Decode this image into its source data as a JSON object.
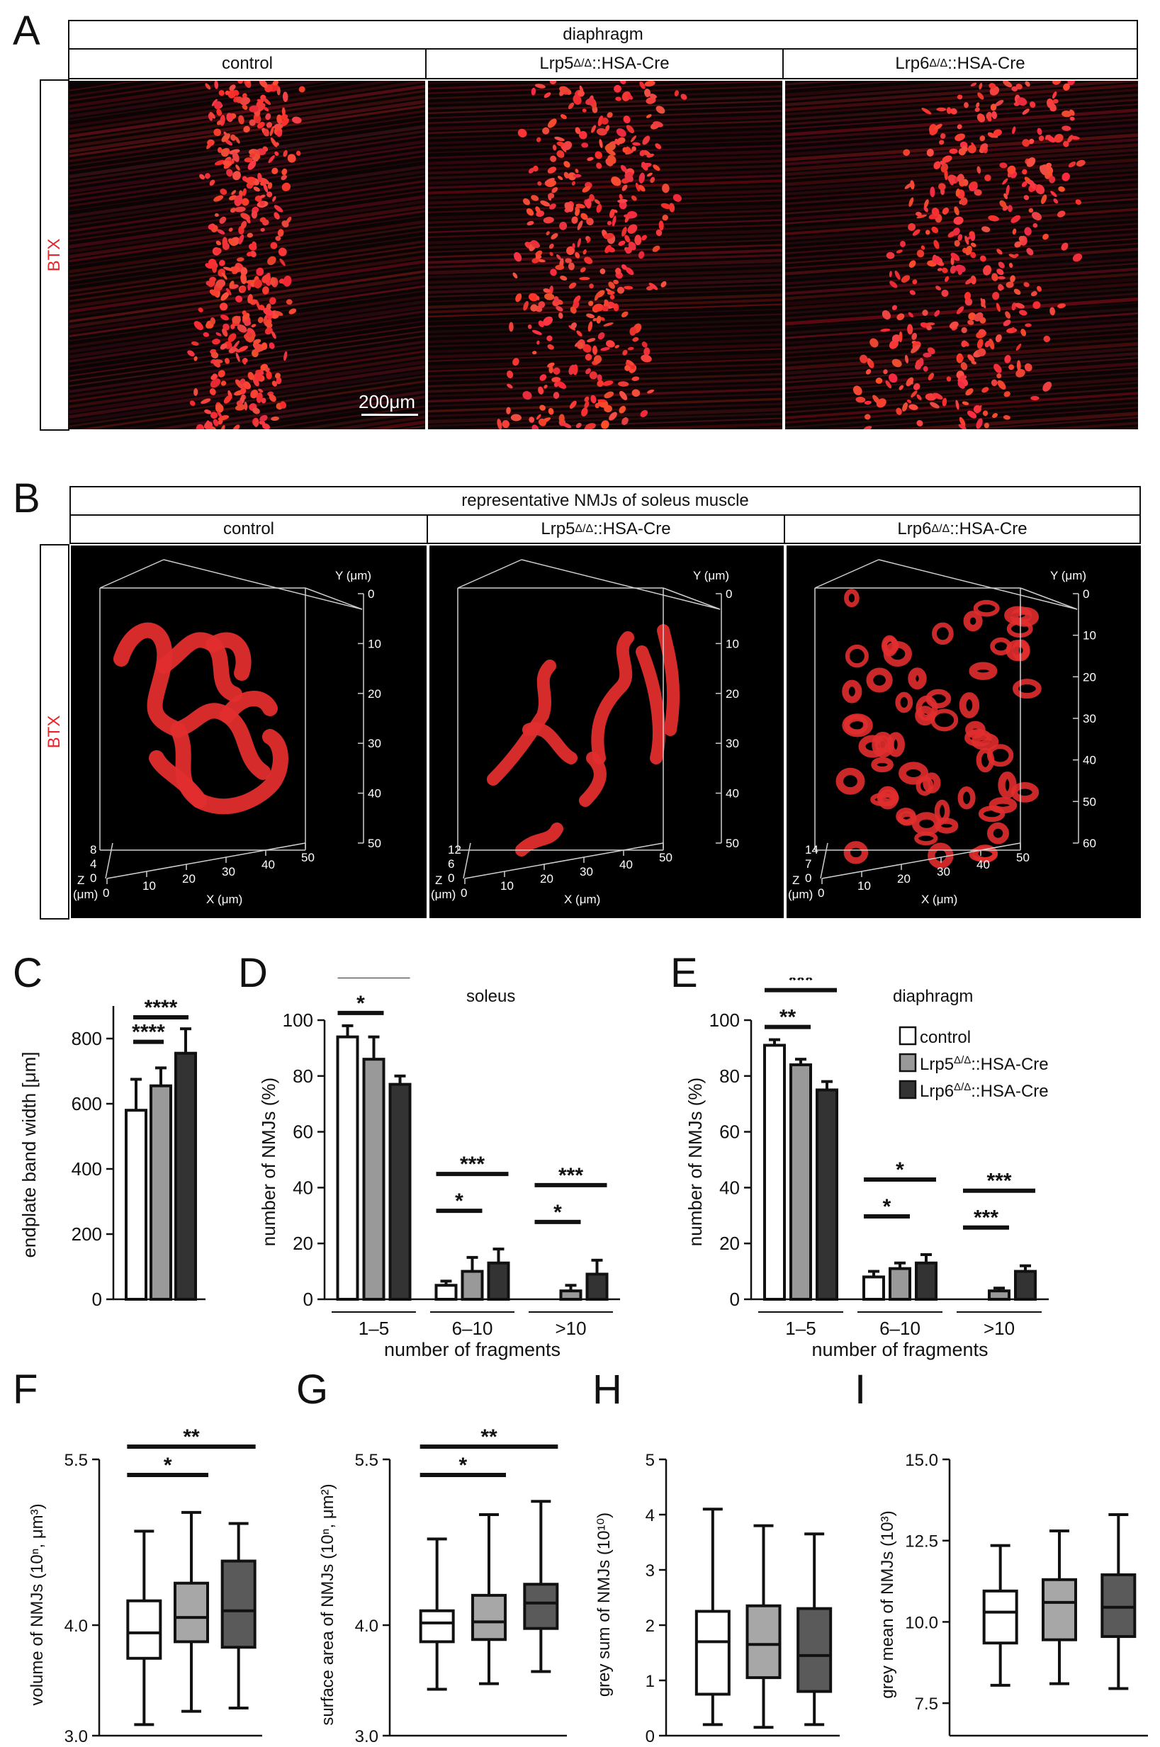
{
  "panel_labels": {
    "A": "A",
    "B": "B",
    "C": "C",
    "D": "D",
    "E": "E",
    "F": "F",
    "G": "G",
    "H": "H",
    "I": "I"
  },
  "panelA": {
    "header": "diaphragm",
    "columns": [
      "control",
      "Lrp5",
      "Lrp6"
    ],
    "column_suffix": "::HSA-Cre",
    "superscript": "Δ/Δ",
    "row_label": "BTX",
    "scale_bar": "200μm"
  },
  "panelB": {
    "header": "representative NMJs of soleus muscle",
    "columns": [
      "control",
      "Lrp5",
      "Lrp6"
    ],
    "column_suffix": "::HSA-Cre",
    "superscript": "Δ/Δ",
    "row_label": "BTX",
    "axis_y": "Y (μm)",
    "axis_x": "X (μm)",
    "axis_z": "Z",
    "axis_z_unit": "(μm)",
    "y_ticks": [
      [
        "0",
        "10",
        "20",
        "30",
        "40",
        "50"
      ],
      [
        "0",
        "10",
        "20",
        "30",
        "40",
        "50"
      ],
      [
        "0",
        "10",
        "20",
        "30",
        "40",
        "50",
        "60"
      ]
    ],
    "x_ticks": [
      [
        "0",
        "10",
        "20",
        "30",
        "40",
        "50"
      ],
      [
        "0",
        "10",
        "20",
        "30",
        "40",
        "50"
      ],
      [
        "0",
        "10",
        "20",
        "30",
        "40",
        "50"
      ]
    ],
    "z_ticks": [
      [
        "0",
        "4",
        "8"
      ],
      [
        "0",
        "6",
        "12"
      ],
      [
        "0",
        "7",
        "14"
      ]
    ]
  },
  "legend": {
    "items": [
      "control",
      "Lrp5",
      "Lrp6"
    ],
    "suffix": "::HSA-Cre",
    "superscript": "Δ/Δ",
    "colors": [
      "#ffffff",
      "#999999",
      "#333333"
    ]
  },
  "chart_data": [
    {
      "id": "C",
      "type": "bar",
      "ylabel": "endplate band width [μm]",
      "ylim": [
        0,
        900
      ],
      "yticks": [
        0,
        200,
        400,
        600,
        800
      ],
      "values": [
        580,
        655,
        755
      ],
      "errors": [
        95,
        55,
        75
      ],
      "colors": [
        "#ffffff",
        "#999999",
        "#333333"
      ],
      "significance": [
        {
          "from": 0,
          "to": 1,
          "label": "****"
        },
        {
          "from": 0,
          "to": 2,
          "label": "****"
        }
      ]
    },
    {
      "id": "D",
      "type": "bar",
      "title": "soleus",
      "ylabel": "number of NMJs (%)",
      "xlabel": "number of fragments",
      "ylim": [
        0,
        100
      ],
      "yticks": [
        0,
        20,
        40,
        60,
        80,
        100
      ],
      "categories": [
        "1–5",
        "6–10",
        ">10"
      ],
      "series": [
        {
          "values": [
            94,
            5,
            0
          ],
          "errors": [
            4,
            1.5,
            0
          ]
        },
        {
          "values": [
            86,
            10,
            3
          ],
          "errors": [
            8,
            5,
            2
          ]
        },
        {
          "values": [
            77,
            13,
            9
          ],
          "errors": [
            3,
            5,
            5
          ]
        }
      ],
      "colors": [
        "#ffffff",
        "#999999",
        "#333333"
      ],
      "significance": [
        {
          "cat": 0,
          "from": 0,
          "to": 1,
          "label": "*"
        },
        {
          "cat": 0,
          "from": 0,
          "to": 2,
          "label": "****"
        },
        {
          "cat": 1,
          "from": 0,
          "to": 1,
          "label": "*"
        },
        {
          "cat": 1,
          "from": 0,
          "to": 2,
          "label": "***"
        },
        {
          "cat": 2,
          "from": 0,
          "to": 1,
          "label": "*"
        },
        {
          "cat": 2,
          "from": 0,
          "to": 2,
          "label": "***"
        }
      ]
    },
    {
      "id": "E",
      "type": "bar",
      "title": "diaphragm",
      "ylabel": "number of NMJs (%)",
      "xlabel": "number of fragments",
      "ylim": [
        0,
        100
      ],
      "yticks": [
        0,
        20,
        40,
        60,
        80,
        100
      ],
      "categories": [
        "1–5",
        "6–10",
        ">10"
      ],
      "series": [
        {
          "values": [
            91,
            8,
            0
          ],
          "errors": [
            2,
            2,
            0
          ]
        },
        {
          "values": [
            84,
            11,
            3
          ],
          "errors": [
            2,
            2,
            1
          ]
        },
        {
          "values": [
            75,
            13,
            10
          ],
          "errors": [
            3,
            3,
            2
          ]
        }
      ],
      "colors": [
        "#ffffff",
        "#999999",
        "#333333"
      ],
      "significance": [
        {
          "cat": 0,
          "from": 0,
          "to": 1,
          "label": "**"
        },
        {
          "cat": 0,
          "from": 0,
          "to": 2,
          "label": "***"
        },
        {
          "cat": 1,
          "from": 0,
          "to": 1,
          "label": "*"
        },
        {
          "cat": 1,
          "from": 0,
          "to": 2,
          "label": "*"
        },
        {
          "cat": 2,
          "from": 0,
          "to": 1,
          "label": "***"
        },
        {
          "cat": 2,
          "from": 0,
          "to": 2,
          "label": "***"
        }
      ]
    },
    {
      "id": "F",
      "type": "box",
      "ylabel": "volume of NMJs (10ⁿ, μm³)",
      "ylim": [
        3.0,
        5.5
      ],
      "yticks": [
        "3.0",
        "4.0",
        "5.5"
      ],
      "ytick_values": [
        3.0,
        4.0,
        5.5
      ],
      "boxes": [
        {
          "min": 3.1,
          "q1": 3.7,
          "median": 3.93,
          "q3": 4.22,
          "max": 4.85
        },
        {
          "min": 3.22,
          "q1": 3.85,
          "median": 4.07,
          "q3": 4.38,
          "max": 5.02
        },
        {
          "min": 3.25,
          "q1": 3.8,
          "median": 4.13,
          "q3": 4.58,
          "max": 4.92
        }
      ],
      "colors": [
        "#ffffff",
        "#a7a7a7",
        "#5a5a5a"
      ],
      "significance": [
        {
          "from": 0,
          "to": 1,
          "label": "*"
        },
        {
          "from": 0,
          "to": 2,
          "label": "**"
        }
      ]
    },
    {
      "id": "G",
      "type": "box",
      "ylabel": "surface area of NMJs (10ⁿ, μm²)",
      "ylim": [
        3.0,
        5.5
      ],
      "yticks": [
        "3.0",
        "4.0",
        "5.5"
      ],
      "ytick_values": [
        3.0,
        4.0,
        5.5
      ],
      "boxes": [
        {
          "min": 3.42,
          "q1": 3.85,
          "median": 4.02,
          "q3": 4.13,
          "max": 4.78
        },
        {
          "min": 3.47,
          "q1": 3.87,
          "median": 4.03,
          "q3": 4.27,
          "max": 5.0
        },
        {
          "min": 3.58,
          "q1": 3.97,
          "median": 4.2,
          "q3": 4.37,
          "max": 5.12
        }
      ],
      "colors": [
        "#ffffff",
        "#a7a7a7",
        "#5a5a5a"
      ],
      "significance": [
        {
          "from": 0,
          "to": 1,
          "label": "*"
        },
        {
          "from": 0,
          "to": 2,
          "label": "**"
        }
      ]
    },
    {
      "id": "H",
      "type": "box",
      "ylabel": "grey sum of NMJs (10¹⁰)",
      "ylim": [
        0,
        5
      ],
      "yticks": [
        "0",
        "1",
        "2",
        "3",
        "4",
        "5"
      ],
      "ytick_values": [
        0,
        1,
        2,
        3,
        4,
        5
      ],
      "boxes": [
        {
          "min": 0.2,
          "q1": 0.75,
          "median": 1.7,
          "q3": 2.25,
          "max": 4.1
        },
        {
          "min": 0.15,
          "q1": 1.05,
          "median": 1.65,
          "q3": 2.35,
          "max": 3.8
        },
        {
          "min": 0.2,
          "q1": 0.8,
          "median": 1.45,
          "q3": 2.3,
          "max": 3.65
        }
      ],
      "colors": [
        "#ffffff",
        "#a7a7a7",
        "#5a5a5a"
      ],
      "significance": []
    },
    {
      "id": "I",
      "type": "box",
      "ylabel": "grey mean of NMJs (10³)",
      "ylim": [
        6.5,
        15.0
      ],
      "yticks": [
        "7.5",
        "10.0",
        "12.5",
        "15.0"
      ],
      "ytick_values": [
        7.5,
        10.0,
        12.5,
        15.0
      ],
      "boxes": [
        {
          "min": 8.05,
          "q1": 9.35,
          "median": 10.3,
          "q3": 10.95,
          "max": 12.35
        },
        {
          "min": 8.1,
          "q1": 9.45,
          "median": 10.6,
          "q3": 11.3,
          "max": 12.8
        },
        {
          "min": 7.95,
          "q1": 9.55,
          "median": 10.45,
          "q3": 11.45,
          "max": 13.3
        }
      ],
      "colors": [
        "#ffffff",
        "#a7a7a7",
        "#5a5a5a"
      ],
      "significance": []
    }
  ]
}
